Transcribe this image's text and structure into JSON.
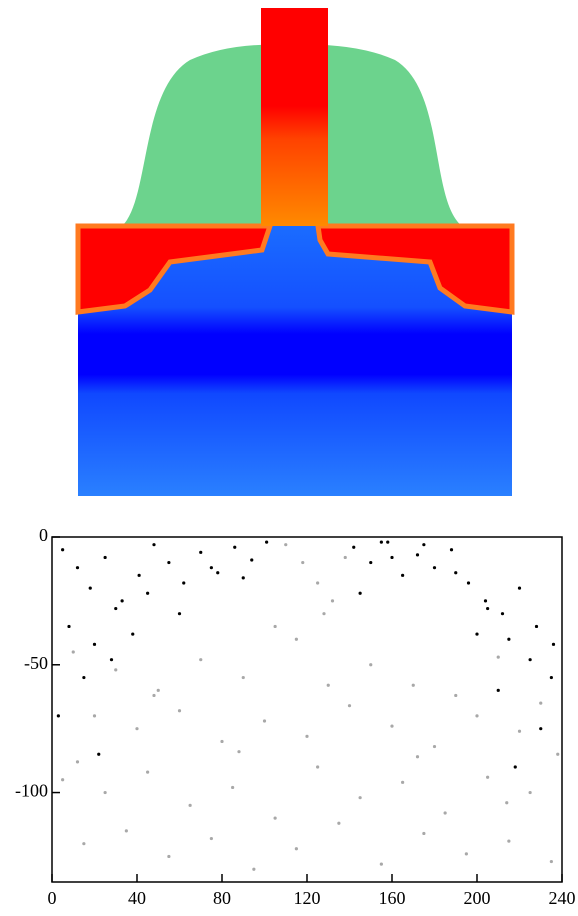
{
  "chart_data": {
    "type": "scatter",
    "xlim": [
      0,
      240
    ],
    "ylim": [
      -135,
      0
    ],
    "xticks": [
      0,
      40,
      80,
      120,
      160,
      200,
      240
    ],
    "yticks": [
      0,
      -50,
      -100
    ],
    "series": [
      {
        "color": "#000000",
        "x": [
          5,
          12,
          18,
          25,
          33,
          41,
          48,
          55,
          62,
          70,
          78,
          86,
          94,
          101,
          8,
          20,
          30,
          45,
          60,
          75,
          90,
          15,
          28,
          38,
          3,
          22,
          142,
          150,
          158,
          165,
          172,
          180,
          188,
          196,
          204,
          212,
          220,
          228,
          236,
          145,
          160,
          175,
          190,
          205,
          215,
          225,
          235,
          210,
          230,
          218,
          200,
          155
        ],
        "values": [
          -5,
          -12,
          -20,
          -8,
          -25,
          -15,
          -3,
          -10,
          -18,
          -6,
          -14,
          -4,
          -9,
          -2,
          -35,
          -42,
          -28,
          -22,
          -30,
          -12,
          -16,
          -55,
          -48,
          -38,
          -70,
          -85,
          -4,
          -10,
          -2,
          -15,
          -7,
          -12,
          -5,
          -18,
          -25,
          -30,
          -20,
          -35,
          -42,
          -22,
          -8,
          -3,
          -14,
          -28,
          -40,
          -48,
          -55,
          -60,
          -75,
          -90,
          -38,
          -2
        ]
      },
      {
        "color": "#a8a8a8",
        "x": [
          110,
          118,
          125,
          132,
          105,
          115,
          128,
          138,
          10,
          30,
          50,
          70,
          90,
          150,
          170,
          190,
          210,
          230,
          20,
          40,
          60,
          80,
          100,
          120,
          140,
          160,
          180,
          200,
          220,
          238,
          5,
          25,
          45,
          65,
          85,
          105,
          125,
          145,
          165,
          185,
          205,
          225,
          15,
          35,
          55,
          75,
          95,
          115,
          135,
          155,
          175,
          195,
          215,
          235,
          12,
          48,
          88,
          130,
          172,
          214
        ],
        "values": [
          -3,
          -10,
          -18,
          -25,
          -35,
          -40,
          -30,
          -8,
          -45,
          -52,
          -60,
          -48,
          -55,
          -50,
          -58,
          -62,
          -47,
          -65,
          -70,
          -75,
          -68,
          -80,
          -72,
          -78,
          -66,
          -74,
          -82,
          -70,
          -76,
          -85,
          -95,
          -100,
          -92,
          -105,
          -98,
          -110,
          -90,
          -102,
          -96,
          -108,
          -94,
          -100,
          -120,
          -115,
          -125,
          -118,
          -130,
          -122,
          -112,
          -128,
          -116,
          -124,
          -119,
          -127,
          -88,
          -62,
          -84,
          -58,
          -86,
          -104
        ]
      }
    ]
  }
}
